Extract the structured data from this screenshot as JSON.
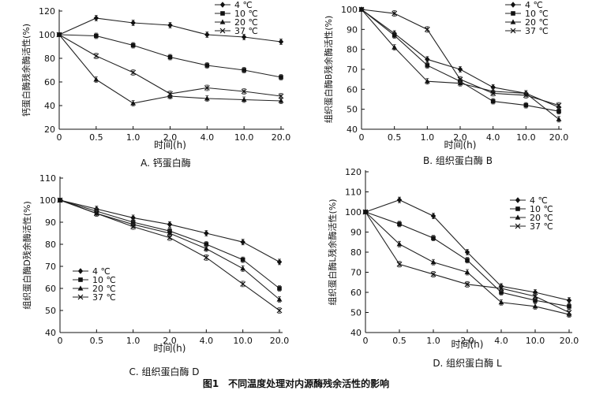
{
  "figure_caption": "图1　不同温度处理对内源酶残余活性的影响",
  "chart_data": [
    {
      "type": "line",
      "subtitle": "A. 钙蛋白酶",
      "xlabel": "时间(h)",
      "ylabel": "钙蛋白酶残余酶活性(%)",
      "categories": [
        "0",
        "0.5",
        "1.0",
        "2.0",
        "4.0",
        "10.0",
        "20.0"
      ],
      "ylim": [
        20,
        120
      ],
      "yticks": [
        20,
        40,
        60,
        80,
        100,
        120
      ],
      "legend_position": "top-right",
      "series": [
        {
          "name": "4 ℃",
          "marker": "diamond",
          "values": [
            100,
            114,
            110,
            108,
            100,
            98,
            94
          ]
        },
        {
          "name": "10 ℃",
          "marker": "square",
          "values": [
            100,
            99,
            91,
            81,
            74,
            70,
            64
          ]
        },
        {
          "name": "20 ℃",
          "marker": "triangle",
          "values": [
            100,
            62,
            42,
            48,
            46,
            45,
            44
          ]
        },
        {
          "name": "37 ℃",
          "marker": "cross",
          "values": [
            100,
            82,
            68,
            50,
            55,
            52,
            48
          ]
        }
      ]
    },
    {
      "type": "line",
      "subtitle": "B. 组织蛋白酶 B",
      "xlabel": "时间(h)",
      "ylabel": "组织蛋白酶B残余酶活性(%)",
      "categories": [
        "0",
        "0.5",
        "1.0",
        "2.0",
        "4.0",
        "10.0",
        "20.0"
      ],
      "ylim": [
        40,
        100
      ],
      "yticks": [
        40,
        50,
        60,
        70,
        80,
        90,
        100
      ],
      "legend_position": "top-right",
      "series": [
        {
          "name": "4 ℃",
          "marker": "diamond",
          "values": [
            100,
            88,
            75,
            70,
            61,
            58,
            51
          ]
        },
        {
          "name": "10 ℃",
          "marker": "square",
          "values": [
            100,
            87,
            72,
            64,
            54,
            52,
            49
          ]
        },
        {
          "name": "20 ℃",
          "marker": "triangle",
          "values": [
            100,
            81,
            64,
            63,
            59,
            58,
            45
          ]
        },
        {
          "name": "37 ℃",
          "marker": "cross",
          "values": [
            100,
            98,
            90,
            65,
            58,
            57,
            52
          ]
        }
      ]
    },
    {
      "type": "line",
      "subtitle": "C. 组织蛋白酶 D",
      "xlabel": "时间(h)",
      "ylabel": "组织蛋白酶D残余酶活性(%)",
      "categories": [
        "0",
        "0.5",
        "1.0",
        "2.0",
        "4.0",
        "10.0",
        "20.0"
      ],
      "ylim": [
        40,
        110
      ],
      "yticks": [
        40,
        50,
        60,
        70,
        80,
        90,
        100,
        110
      ],
      "legend_position": "bottom-left",
      "series": [
        {
          "name": "4 ℃",
          "marker": "diamond",
          "values": [
            100,
            96,
            92,
            89,
            85,
            81,
            72
          ]
        },
        {
          "name": "10 ℃",
          "marker": "square",
          "values": [
            100,
            95,
            90,
            86,
            80,
            73,
            60
          ]
        },
        {
          "name": "20 ℃",
          "marker": "triangle",
          "values": [
            100,
            94,
            89,
            85,
            78,
            69,
            55
          ]
        },
        {
          "name": "37 ℃",
          "marker": "cross",
          "values": [
            100,
            94,
            88,
            83,
            74,
            62,
            50
          ]
        }
      ]
    },
    {
      "type": "line",
      "subtitle": "D. 组织蛋白酶 L",
      "xlabel": "时间(h)",
      "ylabel": "组织蛋白酶L残余酶活性(%)",
      "categories": [
        "0",
        "0.5",
        "1.0",
        "2.0",
        "4.0",
        "10.0",
        "20.0"
      ],
      "ylim": [
        40,
        120
      ],
      "yticks": [
        40,
        50,
        60,
        70,
        80,
        90,
        100,
        110,
        120
      ],
      "legend_position": "top-right",
      "series": [
        {
          "name": "4 ℃",
          "marker": "diamond",
          "values": [
            100,
            106,
            98,
            80,
            63,
            60,
            56
          ]
        },
        {
          "name": "10 ℃",
          "marker": "square",
          "values": [
            100,
            94,
            87,
            76,
            60,
            56,
            53
          ]
        },
        {
          "name": "20 ℃",
          "marker": "triangle",
          "values": [
            100,
            84,
            75,
            70,
            55,
            53,
            49
          ]
        },
        {
          "name": "37 ℃",
          "marker": "cross",
          "values": [
            100,
            74,
            69,
            64,
            62,
            58,
            50
          ]
        }
      ]
    }
  ]
}
